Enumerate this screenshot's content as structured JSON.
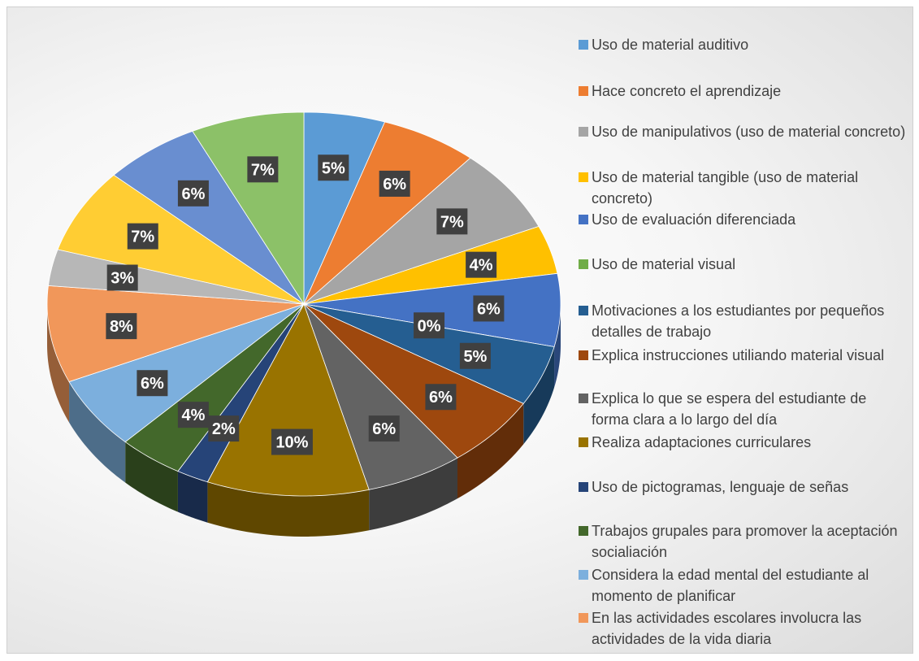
{
  "chart_data": {
    "type": "pie",
    "categories": [
      "Uso de material auditivo",
      "Hace concreto el aprendizaje",
      "Uso de manipulativos (uso de material concreto)",
      "Uso de material tangible (uso de material concreto)",
      "Uso de evaluación diferenciada",
      "Uso de material visual",
      "Motivaciones a los estudiantes por pequeños detalles de trabajo",
      "Explica instrucciones utiliando material visual",
      "Explica lo que se espera del estudiante de forma clara a lo largo del día",
      "Realiza adaptaciones curriculares",
      "Uso de pictogramas, lenguaje de señas",
      "Trabajos grupales para promover la aceptación  socialiación",
      "Considera la edad mental del estudiante al momento de planificar",
      "En las actividades escolares involucra las actividades de la vida diaria",
      null,
      null,
      null,
      null
    ],
    "values": [
      5,
      6,
      7,
      4,
      6,
      0,
      5,
      6,
      6,
      10,
      2,
      4,
      6,
      8,
      3,
      7,
      6,
      7
    ],
    "value_labels": [
      "5%",
      "6%",
      "7%",
      "4%",
      "6%",
      "0%",
      "5%",
      "6%",
      "6%",
      "10%",
      "2%",
      "4%",
      "6%",
      "8%",
      "3%",
      "7%",
      "6%",
      "7%"
    ],
    "colors": [
      "#5b9bd5",
      "#ed7d31",
      "#a5a5a5",
      "#ffc000",
      "#4472c4",
      "#70ad47",
      "#255e91",
      "#9e480e",
      "#636363",
      "#997300",
      "#264478",
      "#43682b",
      "#7cafdd",
      "#f1975a",
      "#b7b7b7",
      "#ffcd33",
      "#698ed0",
      "#8cc168"
    ],
    "legend": "right"
  }
}
